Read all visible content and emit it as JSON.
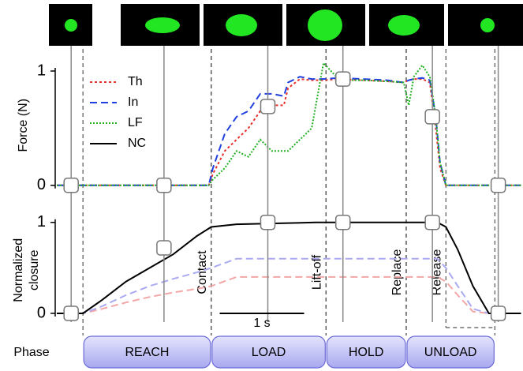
{
  "chart_data": [
    {
      "type": "line",
      "ylabel": "Force (N)",
      "xlim": [
        0,
        5.5
      ],
      "ylim": [
        -0.05,
        1.1
      ],
      "yticks": [
        0,
        1
      ],
      "legend": "upper left",
      "x": [
        0,
        1.8,
        1.85,
        1.99,
        2.13,
        2.27,
        2.41,
        2.55,
        2.69,
        2.74,
        2.88,
        3.02,
        3.16,
        3.35,
        3.63,
        3.91,
        4.11,
        4.17,
        4.23,
        4.33,
        4.42,
        4.49,
        4.54,
        4.61,
        4.93,
        5.5
      ],
      "series": [
        {
          "name": "Th",
          "color": "#e8302a",
          "dash": "dotted",
          "values": [
            0,
            0,
            0.1,
            0.3,
            0.4,
            0.5,
            0.65,
            0.7,
            0.7,
            0.85,
            0.93,
            0.92,
            0.92,
            0.93,
            0.92,
            0.91,
            0.9,
            0.92,
            0.93,
            0.93,
            0.9,
            0.5,
            0.15,
            0,
            0,
            0
          ]
        },
        {
          "name": "In",
          "color": "#2040e0",
          "dash": "dashed",
          "values": [
            0,
            0,
            0.15,
            0.45,
            0.6,
            0.65,
            0.8,
            0.8,
            0.78,
            0.9,
            0.95,
            0.93,
            0.93,
            0.94,
            0.93,
            0.92,
            0.9,
            0.92,
            0.93,
            0.94,
            0.92,
            0.6,
            0.2,
            0,
            0,
            0
          ]
        },
        {
          "name": "LF",
          "color": "#22b022",
          "dash": "fine",
          "values": [
            0,
            0,
            0.05,
            0.15,
            0.3,
            0.25,
            0.4,
            0.3,
            0.3,
            0.3,
            0.4,
            0.5,
            1.07,
            0.92,
            0.92,
            0.91,
            0.9,
            0.7,
            0.95,
            1.05,
            0.95,
            0.6,
            0.2,
            0,
            0,
            0
          ]
        }
      ],
      "frames": {
        "x": [
          0.17,
          1.27,
          2.5,
          3.39,
          4.45,
          5.23
        ],
        "values": [
          0,
          0,
          0.69,
          0.93,
          0.6,
          0
        ]
      }
    },
    {
      "type": "line",
      "ylabel": [
        "Normalized",
        "closure"
      ],
      "xlim": [
        0,
        5.5
      ],
      "ylim": [
        -0.1,
        1.05
      ],
      "yticks": [
        0,
        1
      ],
      "x": [
        0,
        0.31,
        0.54,
        0.82,
        1.1,
        1.38,
        1.66,
        1.83,
        2.13,
        3.07,
        4.19,
        4.51,
        4.61,
        4.75,
        4.93,
        5.12,
        5.5
      ],
      "series": [
        {
          "color": "#f2a6a6",
          "dash": "dashed",
          "values": [
            0,
            0,
            0.05,
            0.12,
            0.18,
            0.23,
            0.27,
            0.3,
            0.4,
            0.4,
            0.4,
            0.4,
            0.35,
            0.2,
            0.02,
            0,
            0
          ]
        },
        {
          "color": "#aaaaf2",
          "dash": "dashed",
          "values": [
            0,
            0,
            0.08,
            0.2,
            0.3,
            0.38,
            0.45,
            0.5,
            0.6,
            0.6,
            0.6,
            0.6,
            0.5,
            0.3,
            0.05,
            0,
            0
          ]
        },
        {
          "name": "NC",
          "color": "#000000",
          "dash": "solid",
          "values": [
            0,
            0,
            0.15,
            0.35,
            0.5,
            0.65,
            0.85,
            0.95,
            0.98,
            1,
            1,
            1,
            0.95,
            0.7,
            0.3,
            0,
            0
          ]
        }
      ],
      "frames": {
        "x": [
          0.17,
          1.27,
          2.5,
          3.39,
          4.45,
          5.23
        ],
        "values": [
          0,
          0.72,
          1,
          1,
          1,
          0
        ]
      },
      "events": [
        {
          "label": "Contact",
          "x": 1.83
        },
        {
          "label": "Lift-off",
          "x": 3.19
        },
        {
          "label": "Replace",
          "x": 4.14
        },
        {
          "label": "Release",
          "x": 4.61
        }
      ],
      "scale_bar": {
        "value": 1,
        "label": "1 s"
      },
      "phases": {
        "label": "Phase",
        "items": [
          {
            "label": "REACH",
            "start": 0.31,
            "end": 1.83
          },
          {
            "label": "LOAD",
            "start": 1.83,
            "end": 3.19
          },
          {
            "label": "HOLD",
            "start": 3.19,
            "end": 4.14
          },
          {
            "label": "UNLOAD",
            "start": 4.14,
            "end": 5.19
          }
        ]
      }
    }
  ]
}
